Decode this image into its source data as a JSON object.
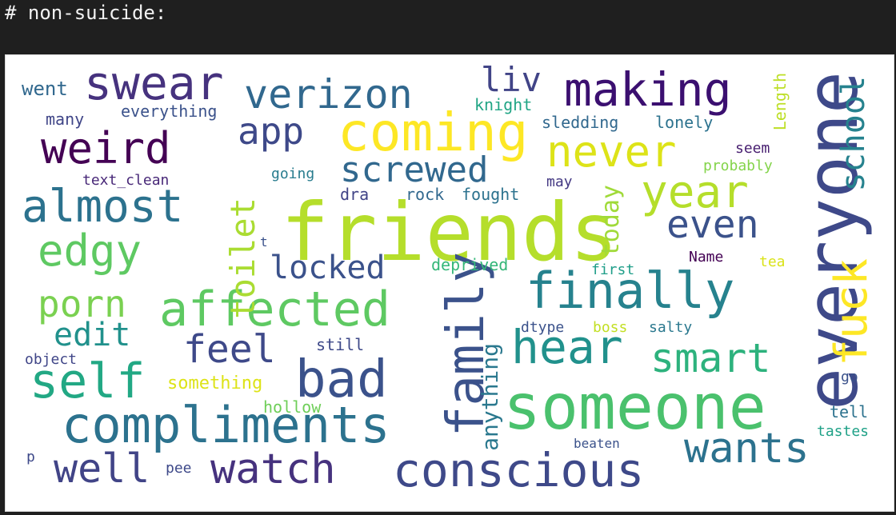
{
  "cell": {
    "header": "# non-suicide:"
  },
  "wordcloud": {
    "words": [
      {
        "text": "friends",
        "color": "#b5de2b",
        "rotate": false
      },
      {
        "text": "someone",
        "color": "#4ac16d",
        "rotate": false
      },
      {
        "text": "coming",
        "color": "#fde725",
        "rotate": false
      },
      {
        "text": "compliments",
        "color": "#2c728e",
        "rotate": false
      },
      {
        "text": "affected",
        "color": "#5ec962",
        "rotate": false
      },
      {
        "text": "finally",
        "color": "#26828e",
        "rotate": false
      },
      {
        "text": "conscious",
        "color": "#3e4989",
        "rotate": false
      },
      {
        "text": "swear",
        "color": "#46327e",
        "rotate": false
      },
      {
        "text": "making",
        "color": "#3b0f70",
        "rotate": false
      },
      {
        "text": "verizon",
        "color": "#31688e",
        "rotate": false
      },
      {
        "text": "never",
        "color": "#dde318",
        "rotate": false
      },
      {
        "text": "weird",
        "color": "#440154",
        "rotate": false
      },
      {
        "text": "almost",
        "color": "#2c728e",
        "rotate": false
      },
      {
        "text": "edgy",
        "color": "#5ec962",
        "rotate": false
      },
      {
        "text": "self",
        "color": "#22a884",
        "rotate": false
      },
      {
        "text": "bad",
        "color": "#3b528b",
        "rotate": false
      },
      {
        "text": "hear",
        "color": "#21918c",
        "rotate": false
      },
      {
        "text": "wants",
        "color": "#2c728e",
        "rotate": false
      },
      {
        "text": "watch",
        "color": "#46327e",
        "rotate": false
      },
      {
        "text": "well",
        "color": "#414487",
        "rotate": false
      },
      {
        "text": "year",
        "color": "#b5de2b",
        "rotate": false
      },
      {
        "text": "smart",
        "color": "#2db27d",
        "rotate": false
      },
      {
        "text": "even",
        "color": "#3b528b",
        "rotate": false
      },
      {
        "text": "porn",
        "color": "#7ad151",
        "rotate": false
      },
      {
        "text": "feel",
        "color": "#3e4989",
        "rotate": false
      },
      {
        "text": "screwed",
        "color": "#31688e",
        "rotate": false
      },
      {
        "text": "app",
        "color": "#3e4989",
        "rotate": false
      },
      {
        "text": "liv",
        "color": "#414487",
        "rotate": false
      },
      {
        "text": "edit",
        "color": "#21918c",
        "rotate": false
      },
      {
        "text": "locked",
        "color": "#3b528b",
        "rotate": false
      },
      {
        "text": "everyone",
        "color": "#3e4989",
        "rotate": true
      },
      {
        "text": "family",
        "color": "#3b528b",
        "rotate": true
      },
      {
        "text": "fuck",
        "color": "#fde725",
        "rotate": true
      },
      {
        "text": "toilet",
        "color": "#aadc32",
        "rotate": true
      },
      {
        "text": "school",
        "color": "#26828e",
        "rotate": true
      },
      {
        "text": "today",
        "color": "#a0da39",
        "rotate": true
      },
      {
        "text": "anything",
        "color": "#2a788e",
        "rotate": true
      },
      {
        "text": "Length",
        "color": "#bddf26",
        "rotate": true
      },
      {
        "text": "went",
        "color": "#31688e",
        "rotate": false
      },
      {
        "text": "many",
        "color": "#404688",
        "rotate": false
      },
      {
        "text": "everything",
        "color": "#3b528b",
        "rotate": false
      },
      {
        "text": "text_clean",
        "color": "#482878",
        "rotate": false
      },
      {
        "text": "knight",
        "color": "#21a585",
        "rotate": false
      },
      {
        "text": "sledding",
        "color": "#31688e",
        "rotate": false
      },
      {
        "text": "lonely",
        "color": "#2c728e",
        "rotate": false
      },
      {
        "text": "seem",
        "color": "#481f70",
        "rotate": false
      },
      {
        "text": "probably",
        "color": "#84d44b",
        "rotate": false
      },
      {
        "text": "may",
        "color": "#443983",
        "rotate": false
      },
      {
        "text": "going",
        "color": "#287c8e",
        "rotate": false
      },
      {
        "text": "dra",
        "color": "#414487",
        "rotate": false
      },
      {
        "text": "rock",
        "color": "#31688e",
        "rotate": false
      },
      {
        "text": "fought",
        "color": "#2c728e",
        "rotate": false
      },
      {
        "text": "deprived",
        "color": "#35b779",
        "rotate": false
      },
      {
        "text": "first",
        "color": "#1f9e89",
        "rotate": false
      },
      {
        "text": "Name",
        "color": "#440154",
        "rotate": false
      },
      {
        "text": "tea",
        "color": "#dae319",
        "rotate": false
      },
      {
        "text": "t",
        "color": "#3b528b",
        "rotate": false
      },
      {
        "text": "something",
        "color": "#dde318",
        "rotate": false
      },
      {
        "text": "still",
        "color": "#3e4989",
        "rotate": false
      },
      {
        "text": "object",
        "color": "#404688",
        "rotate": false
      },
      {
        "text": "dtype",
        "color": "#3b528b",
        "rotate": false
      },
      {
        "text": "boss",
        "color": "#c2df23",
        "rotate": false
      },
      {
        "text": "salty",
        "color": "#2a788e",
        "rotate": false
      },
      {
        "text": "hollow",
        "color": "#6ece58",
        "rotate": false
      },
      {
        "text": "go",
        "color": "#3b528b",
        "rotate": false
      },
      {
        "text": "tell",
        "color": "#2c728e",
        "rotate": false
      },
      {
        "text": "tastes",
        "color": "#1fa187",
        "rotate": false
      },
      {
        "text": "beaten",
        "color": "#3b528b",
        "rotate": false
      },
      {
        "text": "p",
        "color": "#3e4989",
        "rotate": false
      },
      {
        "text": "pee",
        "color": "#3e4989",
        "rotate": false
      }
    ]
  }
}
